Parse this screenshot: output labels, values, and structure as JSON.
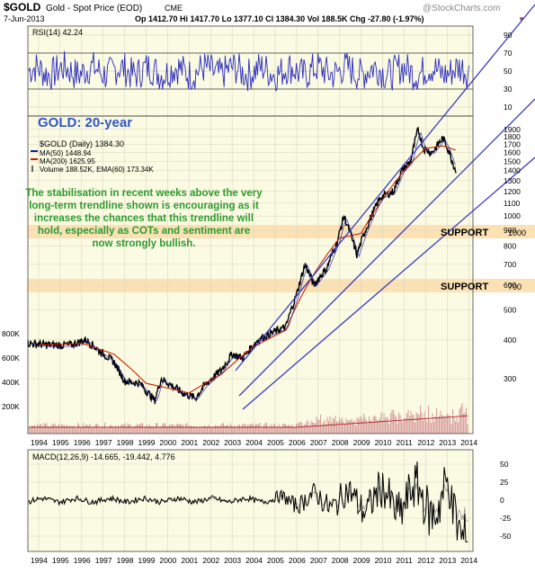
{
  "header": {
    "symbol": "$GOLD",
    "name": "Gold - Spot Price (EOD)",
    "exchange": "CME",
    "date": "7-Jun-2013",
    "ohlc": "Op 1412.70  Hi 1417.70  Lo 1377.10  Cl 1384.30  Vol 188.5K  Chg -27.80 (-1.97%)",
    "arrow": "▼",
    "watermark": "@StockCharts.com"
  },
  "colors": {
    "panel_bg": "#fbfbe4",
    "price": "#000000",
    "ma50": "#1a1aaa",
    "ma200": "#cc2200",
    "rsi": "#2b2bc0",
    "trend": "#3a3ac8",
    "volume": "#d8a0a0",
    "support_band": "#fbe1b4",
    "annotation": "#2e9a2e",
    "title": "#2d55c9"
  },
  "rsi_panel": {
    "legend": "RSI(14) 42.24",
    "ticks": [
      "90",
      "70",
      "50",
      "30",
      "10"
    ]
  },
  "price_panel": {
    "title": "GOLD: 20-year",
    "legend": {
      "price": "$GOLD (Daily) 1384.30",
      "ma50": "MA(50) 1448.94",
      "ma200": "MA(200) 1625.95",
      "volume": "Volume 188.52K, EMA(60) 173.34K"
    },
    "annotation": [
      "The stabilisation in recent weeks above the very",
      "long-term trendline shown is encouraging as it",
      "increases the chances that this trendline will",
      "hold, especially as COTs and sentiment are",
      "now strongly bullish."
    ],
    "support_label": "SUPPORT",
    "support_levels": [
      "1000",
      "700"
    ],
    "right_ticks": [
      "1900",
      "1800",
      "1700",
      "1600",
      "1500",
      "1400",
      "1300",
      "1200",
      "1100",
      "1000",
      "900",
      "800",
      "700",
      "600",
      "500",
      "400",
      "300"
    ],
    "volume_ticks": [
      "800K",
      "600K",
      "400K",
      "200K"
    ]
  },
  "macd_panel": {
    "legend": "MACD(12,26,9) -14.665, -19.442, 4.776",
    "ticks": [
      "50",
      "25",
      "0",
      "-25",
      "-50"
    ]
  },
  "x_axis": {
    "years": [
      "1994",
      "1995",
      "1996",
      "1997",
      "1998",
      "1999",
      "2000",
      "2001",
      "2002",
      "2003",
      "2004",
      "2005",
      "2006",
      "2007",
      "2008",
      "2009",
      "2010",
      "2011",
      "2012",
      "2013",
      "2014"
    ]
  },
  "chart_data": {
    "type": "line",
    "title": "GOLD: 20-year",
    "log_scale_y": true,
    "ylim": [
      200,
      2000
    ],
    "series": [
      {
        "name": "$GOLD (Daily) 1384.30",
        "x": [
          1993.5,
          1994.5,
          1995.5,
          1996.2,
          1996.8,
          1997.5,
          1998.0,
          1998.7,
          1999.4,
          1999.7,
          2000.2,
          2000.7,
          2001.3,
          2001.7,
          2002.5,
          2003.0,
          2003.5,
          2004.2,
          2004.8,
          2005.5,
          2006.0,
          2006.4,
          2006.8,
          2007.4,
          2007.9,
          2008.2,
          2008.8,
          2009.2,
          2009.9,
          2010.5,
          2010.9,
          2011.3,
          2011.65,
          2011.9,
          2012.3,
          2012.8,
          2013.0,
          2013.3,
          2013.44
        ],
        "values": [
          390,
          385,
          385,
          400,
          370,
          340,
          295,
          290,
          255,
          300,
          285,
          270,
          260,
          285,
          320,
          360,
          350,
          400,
          420,
          440,
          560,
          700,
          600,
          680,
          830,
          1000,
          750,
          900,
          1150,
          1200,
          1400,
          1500,
          1900,
          1650,
          1600,
          1780,
          1670,
          1460,
          1384
        ]
      },
      {
        "name": "MA(200) 1625.95",
        "x": [
          1994,
          1996,
          1997.5,
          1999,
          2001,
          2002.5,
          2004,
          2005.5,
          2006.5,
          2008,
          2009,
          2010,
          2011,
          2012,
          2012.8,
          2013.44
        ],
        "values": [
          385,
          390,
          360,
          290,
          270,
          310,
          380,
          430,
          600,
          850,
          880,
          1130,
          1400,
          1650,
          1680,
          1626
        ]
      }
    ],
    "annotations": [
      "SUPPORT 1000",
      "SUPPORT 700"
    ]
  }
}
